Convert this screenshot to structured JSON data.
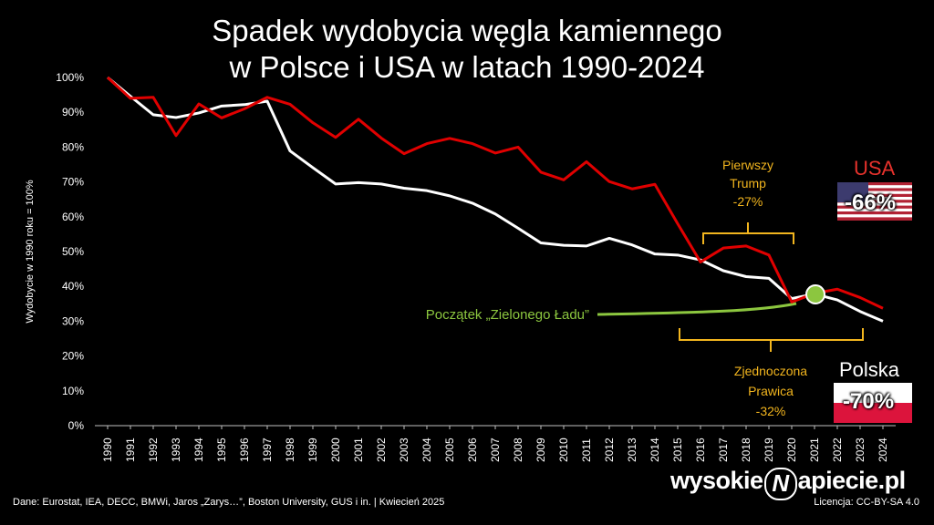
{
  "title_line1": "Spadek wydobycia węgla kamiennego",
  "title_line2": "w Polsce i USA w latach 1990-2024",
  "footer": {
    "sources": "Dane: Eurostat, IEA, DECC, BMWi, Jaros „Zarys…”, Boston University, GUS i in.  |  Kwiecień 2025",
    "license": "Licencja: CC-BY-SA 4.0",
    "logo_left": "wysokie",
    "logo_mark": "N",
    "logo_right": "apiecie.pl"
  },
  "annotations": {
    "trump_line1": "Pierwszy",
    "trump_line2": "Trump",
    "trump_pct": "-27%",
    "zp_line1": "Zjednoczona",
    "zp_line2": "Prawica",
    "zp_pct": "-32%",
    "green_deal": "Początek „Zielonego Ładu”",
    "usa_name": "USA",
    "usa_total": "-66%",
    "pl_name": "Polska",
    "pl_total": "-70%"
  },
  "colors": {
    "usa": "#e00000",
    "poland": "#ffffff",
    "annotation": "#f2b51e",
    "green_deal": "#8cc63f"
  },
  "chart_data": {
    "type": "line",
    "ylabel": "Wydobycie w 1990 roku = 100%",
    "xlabel": "",
    "ylim": [
      0,
      100
    ],
    "yticks": [
      "0%",
      "10%",
      "20%",
      "30%",
      "40%",
      "50%",
      "60%",
      "70%",
      "80%",
      "90%",
      "100%"
    ],
    "x": [
      "1990",
      "1991",
      "1992",
      "1993",
      "1994",
      "1995",
      "1996",
      "1997",
      "1998",
      "1999",
      "2000",
      "2001",
      "2002",
      "2003",
      "2004",
      "2005",
      "2006",
      "2007",
      "2008",
      "2009",
      "2010",
      "2011",
      "2012",
      "2013",
      "2014",
      "2015",
      "2016",
      "2017",
      "2018",
      "2019",
      "2020",
      "2021",
      "2022",
      "2023",
      "2024"
    ],
    "series": [
      {
        "name": "USA",
        "color": "#e00000",
        "values": [
          100,
          94,
          94.3,
          83.3,
          92.4,
          88.4,
          91,
          94.3,
          92.3,
          87,
          82.8,
          88,
          82.6,
          78.1,
          81,
          82.5,
          81,
          78.3,
          80,
          72.8,
          70.6,
          75.8,
          70.1,
          68,
          69.3,
          58,
          47,
          51,
          51.6,
          49,
          35.5,
          38,
          39.2,
          36.8,
          33.7
        ]
      },
      {
        "name": "Polska",
        "color": "#ffffff",
        "values": [
          100,
          94.6,
          89.3,
          88.5,
          89.8,
          91.8,
          92.2,
          93.2,
          78.9,
          74.1,
          69.4,
          69.8,
          69.4,
          68.2,
          67.5,
          66,
          63.9,
          60.8,
          56.7,
          52.5,
          51.8,
          51.6,
          53.8,
          51.9,
          49.3,
          49,
          47.6,
          44.5,
          42.8,
          42.3,
          36.5,
          37.8,
          36.1,
          32.8,
          30
        ]
      }
    ]
  }
}
